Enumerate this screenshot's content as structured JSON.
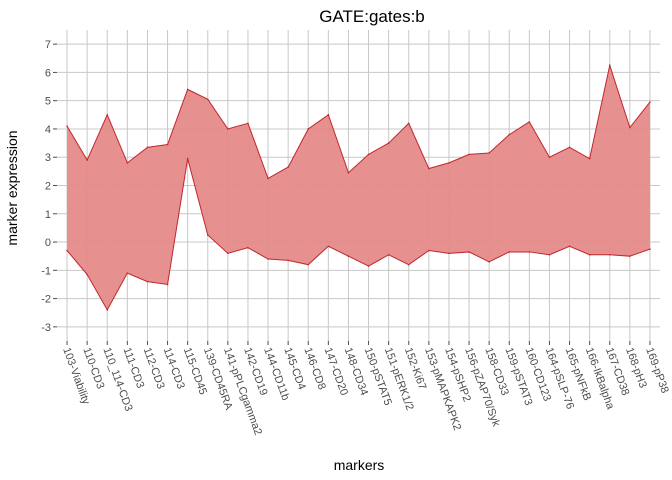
{
  "chart_data": {
    "type": "area",
    "title": "GATE:gates:b",
    "xlabel": "markers",
    "ylabel": "marker expression",
    "ylim": [
      -3.5,
      7.5
    ],
    "yticks": [
      -3,
      -2,
      -1,
      0,
      1,
      2,
      3,
      4,
      5,
      6,
      7
    ],
    "grid": true,
    "categories": [
      "103-Viability",
      "110-CD3",
      "110_114-CD3",
      "111-CD3",
      "112-CD3",
      "114-CD3",
      "115-CD45",
      "139-CD45RA",
      "141-pPLCgamma2",
      "142-CD19",
      "144-CD11b",
      "145-CD4",
      "146-CD8",
      "147-CD20",
      "148-CD34",
      "150-pSTAT5",
      "151-pERK1/2",
      "152-Ki67",
      "153-pMAPKAPK2",
      "154-pSHP2",
      "156-pZAP70/Syk",
      "158-CD33",
      "159-pSTAT3",
      "160-CD123",
      "164-pSLP-76",
      "165-pNFkB",
      "166-IkBalpha",
      "167-CD38",
      "168-pH3",
      "169-pP38"
    ],
    "series": [
      {
        "role": "upper",
        "values": [
          4.1,
          2.9,
          4.5,
          2.8,
          3.35,
          3.45,
          5.4,
          5.05,
          4.0,
          4.2,
          2.25,
          2.65,
          4.0,
          4.5,
          2.45,
          3.1,
          3.5,
          4.2,
          2.6,
          2.8,
          3.1,
          3.15,
          3.8,
          4.25,
          3.0,
          3.35,
          2.95,
          6.25,
          4.05,
          4.95
        ]
      },
      {
        "role": "lower",
        "values": [
          -0.3,
          -1.15,
          -2.4,
          -1.1,
          -1.4,
          -1.5,
          2.95,
          0.25,
          -0.4,
          -0.2,
          -0.6,
          -0.65,
          -0.8,
          -0.15,
          -0.5,
          -0.85,
          -0.45,
          -0.8,
          -0.3,
          -0.4,
          -0.35,
          -0.7,
          -0.35,
          -0.35,
          -0.45,
          -0.15,
          -0.45,
          -0.45,
          -0.5,
          -0.25
        ]
      }
    ],
    "fill_color": "#e58a8a",
    "line_color": "#c0272d",
    "grid_color": "#c8c8c8"
  }
}
